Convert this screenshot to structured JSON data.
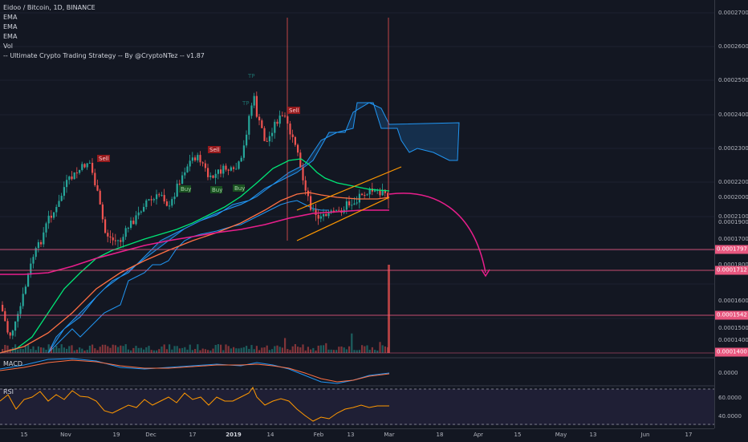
{
  "legend": {
    "symbol": "Eidoo / Bitcoin, 1D, BINANCE",
    "ema1": "EMA",
    "ema2": "EMA",
    "ema3": "EMA",
    "vol": "Vol",
    "strategy": "-- Ultimate Crypto Trading Strategy -- By @CryptoNTez -- v1.87"
  },
  "price_axis": {
    "labels": [
      "0.0002700",
      "0.0002600",
      "0.0002500",
      "0.0002400",
      "0.0002300",
      "0.0002200",
      "0.0002100",
      "0.0002000",
      "0.0001900",
      "0.0001800",
      "0.0001700",
      "0.0001600",
      "0.0001500",
      "0.0001400"
    ],
    "tags": [
      {
        "text": "0.0001797",
        "color": "#e8577f"
      },
      {
        "text": "0.0001712",
        "color": "#e8577f"
      },
      {
        "text": "0.0001542",
        "color": "#e8577f"
      },
      {
        "text": "0.0001400",
        "color": "#e8577f"
      }
    ],
    "macd_label": "0.0000",
    "rsi_labels": [
      "60.0000",
      "40.0000"
    ]
  },
  "time_axis": {
    "labels": [
      "15",
      "Nov",
      "19",
      "Dec",
      "17",
      "2019",
      "14",
      "Feb",
      "13",
      "Mar",
      "18",
      "Apr",
      "15",
      "May",
      "13",
      "Jun",
      "17"
    ],
    "bold": [
      "2019"
    ]
  },
  "signals": {
    "sell1": "Sell",
    "sell2": "Sell",
    "sell3": "Sell",
    "buy1": "Buy",
    "buy2": "Buy",
    "buy3": "Buy",
    "tp1": "TP",
    "tp2": "TP"
  },
  "panels": {
    "macd": "MACD",
    "rsi": "RSI"
  },
  "colors": {
    "background": "#131722",
    "up": "#26a69a",
    "down": "#ef5350",
    "ema_fast": "#00e676",
    "ema_mid": "#ff7043",
    "ema_slow": "#e91e8c",
    "cloud": "#1e88e5",
    "arrow": "#e91e8c",
    "channel": "#ff9800",
    "rsi": "#ff9800"
  }
}
